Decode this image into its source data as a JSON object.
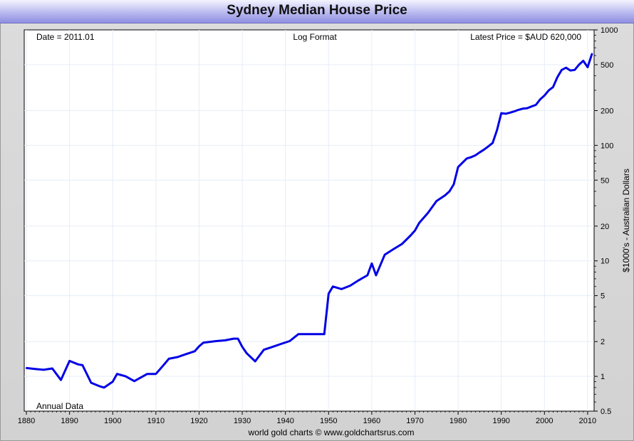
{
  "title": "Sydney Median House Price",
  "footer": "world gold charts © www.goldchartsrus.com",
  "colors": {
    "line": "#0000e6",
    "grid": "#e6edf7",
    "header": "#b9b9f0"
  },
  "chart_data": {
    "type": "line",
    "title": "Sydney Median House Price",
    "ylabel": "$1000's - Australian Dollars",
    "xlabel": "",
    "yscale": "log",
    "ylim": [
      0.5,
      1000
    ],
    "xlim": [
      1879.5,
      2011.5
    ],
    "annotations": {
      "date": "Date = 2011.01",
      "format": "Log Format",
      "latest": "Latest Price = $AUD 620,000",
      "frequency": "Annual Data"
    },
    "xticks": [
      1880,
      1890,
      1900,
      1910,
      1920,
      1930,
      1940,
      1950,
      1960,
      1970,
      1980,
      1990,
      2000,
      2010
    ],
    "yticks": [
      {
        "v": 0.5,
        "label": "0.5"
      },
      {
        "v": 1,
        "label": "1"
      },
      {
        "v": 2,
        "label": "2"
      },
      {
        "v": 5,
        "label": "5"
      },
      {
        "v": 10,
        "label": "10"
      },
      {
        "v": 20,
        "label": "20"
      },
      {
        "v": 50,
        "label": "50"
      },
      {
        "v": 100,
        "label": "100"
      },
      {
        "v": 200,
        "label": "200"
      },
      {
        "v": 500,
        "label": "500"
      },
      {
        "v": 1000,
        "label": "1000"
      }
    ],
    "series": [
      {
        "x": [
          1880,
          1882,
          1884,
          1886,
          1888,
          1890,
          1892,
          1893,
          1895,
          1897,
          1898,
          1900,
          1901,
          1903,
          1905,
          1907,
          1908,
          1910,
          1911,
          1912,
          1913,
          1915,
          1917,
          1919,
          1920,
          1921,
          1924,
          1926,
          1928,
          1929,
          1930,
          1931,
          1933,
          1935,
          1937,
          1939,
          1941,
          1943,
          1947,
          1949,
          1950,
          1951,
          1953,
          1955,
          1957,
          1959,
          1960,
          1961,
          1963,
          1965,
          1967,
          1969,
          1970,
          1971,
          1973,
          1975,
          1977,
          1978,
          1979,
          1980,
          1982,
          1983,
          1984,
          1985,
          1986,
          1987,
          1988,
          1989,
          1990,
          1991,
          1992,
          1993,
          1994,
          1995,
          1996,
          1997,
          1998,
          1999,
          2000,
          2001,
          2002,
          2003,
          2004,
          2005,
          2006,
          2007,
          2008,
          2009,
          2010,
          2011
        ],
        "y": [
          1.18,
          1.16,
          1.14,
          1.17,
          0.93,
          1.36,
          1.27,
          1.25,
          0.88,
          0.82,
          0.8,
          0.9,
          1.05,
          1.0,
          0.91,
          1.0,
          1.05,
          1.05,
          1.16,
          1.28,
          1.42,
          1.47,
          1.56,
          1.65,
          1.82,
          1.96,
          2.02,
          2.05,
          2.12,
          2.12,
          1.8,
          1.59,
          1.35,
          1.7,
          1.8,
          1.91,
          2.02,
          2.32,
          2.32,
          2.32,
          5.2,
          6.0,
          5.7,
          6.1,
          6.8,
          7.5,
          9.5,
          7.5,
          11.3,
          12.6,
          14.0,
          16.6,
          18.3,
          21.3,
          26.0,
          33.0,
          37.0,
          40.0,
          46.0,
          65.0,
          77.0,
          79.0,
          82.0,
          87.0,
          92.0,
          98.0,
          105.0,
          135.0,
          190.0,
          188.0,
          192.0,
          197.0,
          203.0,
          208.0,
          210.0,
          217.0,
          224.0,
          250.0,
          270.0,
          300.0,
          320.0,
          390.0,
          450.0,
          470.0,
          445.0,
          450.0,
          500.0,
          540.0,
          475.0,
          620.0
        ]
      }
    ]
  }
}
